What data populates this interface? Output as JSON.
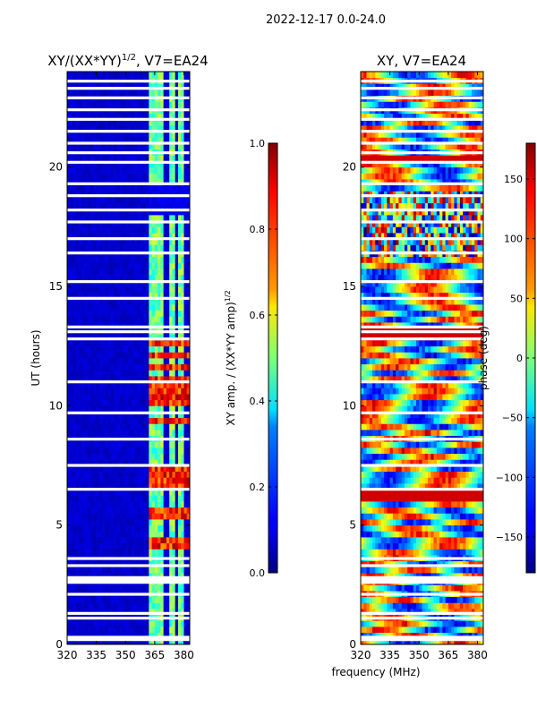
{
  "figure": {
    "suptitle": "2022-12-17 0.0-24.0",
    "xlabel": "frequency (MHz)"
  },
  "chart_data": [
    {
      "type": "heatmap",
      "title_main": "XY/(XX*YY)",
      "title_sup": "1/2",
      "title_tail": ", V7=EA24",
      "xlabel": "",
      "ylabel": "UT (hours)",
      "xlim": [
        320,
        383
      ],
      "ylim": [
        0,
        24
      ],
      "xticks": [
        320,
        335,
        350,
        365,
        380
      ],
      "yticks": [
        0,
        5,
        10,
        15,
        20
      ],
      "colorbar": {
        "label": "XY amp. / (XX*YY amp)",
        "label_sup": "1/2",
        "range": [
          0.0,
          1.0
        ],
        "ticks": [
          "0.0",
          "0.2",
          "0.4",
          "0.6",
          "0.8",
          "1.0"
        ],
        "tick_values": [
          0,
          0.2,
          0.4,
          0.6,
          0.8,
          1.0
        ],
        "colormap": "jet"
      },
      "features": {
        "background_level": 0.05,
        "bright_channel_ranges_mhz": [
          [
            362.5,
            366
          ],
          [
            367,
            370
          ],
          [
            373,
            375
          ],
          [
            377.5,
            380
          ]
        ],
        "hot_spot_hours": [
          4.2,
          5.5,
          6.8,
          7.2,
          9.4,
          10.2,
          10.6,
          11.0,
          11.6,
          12.1,
          12.6
        ]
      },
      "flagged_hours": [
        0.2,
        0.3,
        1.1,
        1.3,
        2.1,
        2.6,
        2.7,
        2.8,
        3.3,
        3.6,
        6.5,
        7.5,
        8.6,
        9.7,
        11.0,
        12.8,
        13.1,
        13.3,
        14.5,
        15.2,
        16.4,
        17.0,
        17.7,
        18.2,
        18.8,
        19.3,
        20.2,
        20.6,
        21.0,
        21.5,
        22.0,
        22.4,
        22.9,
        23.3,
        23.6
      ]
    },
    {
      "type": "heatmap",
      "title_main": "XY, V7=EA24",
      "xlabel": "",
      "ylabel": "",
      "xlim": [
        320,
        383
      ],
      "ylim": [
        0,
        24
      ],
      "xticks": [
        320,
        335,
        350,
        365,
        380
      ],
      "yticks": [
        0,
        5,
        10,
        15,
        20
      ],
      "colorbar": {
        "label": "phase (deg)",
        "range": [
          -180,
          180
        ],
        "ticks": [
          "−150",
          "−100",
          "−50",
          "0",
          "50",
          "100",
          "150"
        ],
        "tick_values": [
          -150,
          -100,
          -50,
          0,
          50,
          100,
          150
        ],
        "colormap": "jet"
      },
      "features": {
        "noisy_phase_hours": [
          16.3,
          19.1
        ],
        "stripe_hours": [
          6.2,
          6.4,
          13.0,
          20.3
        ]
      },
      "flagged_hours": [
        0.2,
        0.3,
        1.1,
        1.3,
        2.1,
        2.6,
        2.7,
        2.8,
        3.3,
        3.6,
        6.5,
        7.5,
        8.6,
        9.7,
        11.0,
        12.8,
        13.1,
        13.3,
        14.5,
        15.2,
        16.4,
        17.0,
        17.7,
        18.2,
        18.8,
        19.3,
        20.2,
        20.6,
        21.0,
        21.5,
        22.0,
        22.4,
        22.9,
        23.3,
        23.6
      ]
    }
  ]
}
